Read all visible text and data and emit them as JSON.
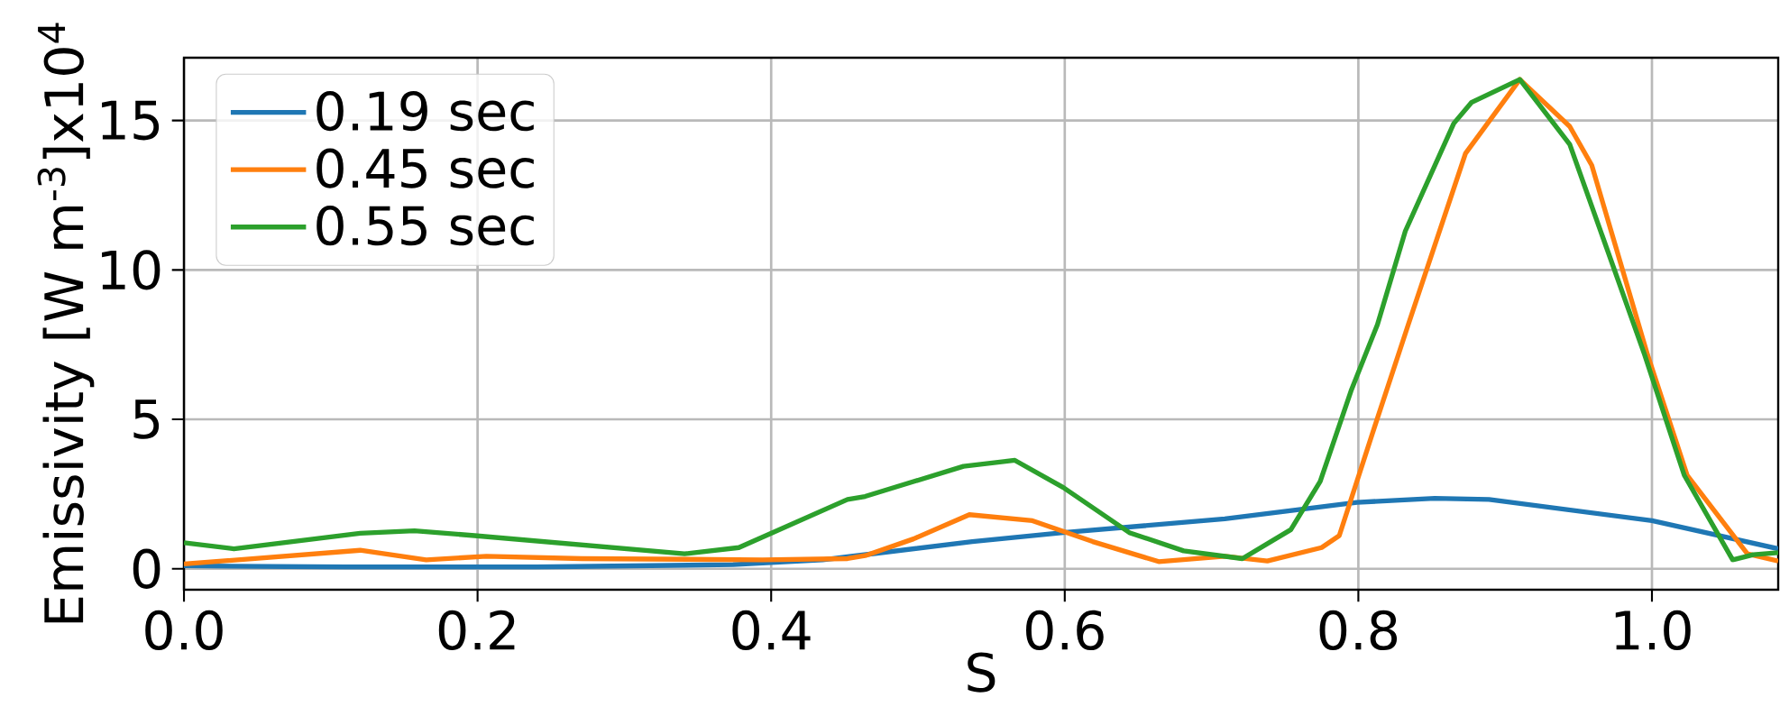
{
  "chart_data": {
    "type": "line",
    "xlabel": "S",
    "ylabel": "Emissivity [W m$^{-3}$]x10$^{4}$",
    "xlim": [
      0,
      1.086
    ],
    "ylim": [
      -0.7,
      17.1
    ],
    "xticks": [
      {
        "value": 0,
        "label": "0.0"
      },
      0.2,
      0.4,
      0.6,
      0.8,
      {
        "value": 1,
        "label": "1.0"
      }
    ],
    "yticks": [
      0,
      5,
      10,
      15
    ],
    "grid": true,
    "legend": "top left",
    "marker": "none",
    "line_style": "solid",
    "series": [
      {
        "name": "0.19 sec",
        "color": "#1f77b4",
        "x": [
          0,
          0.11,
          0.24,
          0.374,
          0.435,
          0.452,
          0.537,
          0.599,
          0.709,
          0.799,
          0.852,
          0.889,
          1.0,
          1.086
        ],
        "values": [
          0.1,
          0.06,
          0.06,
          0.14,
          0.3,
          0.4,
          0.91,
          1.21,
          1.67,
          2.22,
          2.36,
          2.32,
          1.61,
          0.67
        ]
      },
      {
        "name": "0.45 sec",
        "color": "#ff7f0e",
        "x": [
          0,
          0.12,
          0.165,
          0.206,
          0.271,
          0.394,
          0.452,
          0.464,
          0.497,
          0.535,
          0.578,
          0.619,
          0.664,
          0.709,
          0.738,
          0.775,
          0.787,
          0.811,
          0.834,
          0.873,
          0.91,
          0.944,
          0.959,
          0.997,
          1.024,
          1.065,
          1.086
        ],
        "values": [
          0.16,
          0.62,
          0.3,
          0.42,
          0.34,
          0.3,
          0.34,
          0.44,
          1.0,
          1.81,
          1.61,
          0.91,
          0.24,
          0.42,
          0.26,
          0.71,
          1.11,
          4.74,
          8.17,
          13.9,
          16.37,
          14.8,
          13.5,
          7.16,
          3.13,
          0.5,
          0.26
        ]
      },
      {
        "name": "0.55 sec",
        "color": "#2ca02c",
        "x": [
          0,
          0.034,
          0.12,
          0.157,
          0.198,
          0.341,
          0.378,
          0.452,
          0.464,
          0.531,
          0.566,
          0.599,
          0.644,
          0.681,
          0.721,
          0.754,
          0.774,
          0.795,
          0.813,
          0.832,
          0.865,
          0.877,
          0.91,
          0.944,
          0.995,
          1.022,
          1.055,
          1.069,
          1.086
        ],
        "values": [
          0.87,
          0.67,
          1.19,
          1.27,
          1.11,
          0.5,
          0.71,
          2.32,
          2.42,
          3.43,
          3.63,
          2.72,
          1.21,
          0.6,
          0.34,
          1.31,
          2.92,
          5.95,
          8.17,
          11.3,
          14.9,
          15.6,
          16.37,
          14.2,
          7.16,
          3.13,
          0.3,
          0.47,
          0.54
        ]
      }
    ]
  }
}
